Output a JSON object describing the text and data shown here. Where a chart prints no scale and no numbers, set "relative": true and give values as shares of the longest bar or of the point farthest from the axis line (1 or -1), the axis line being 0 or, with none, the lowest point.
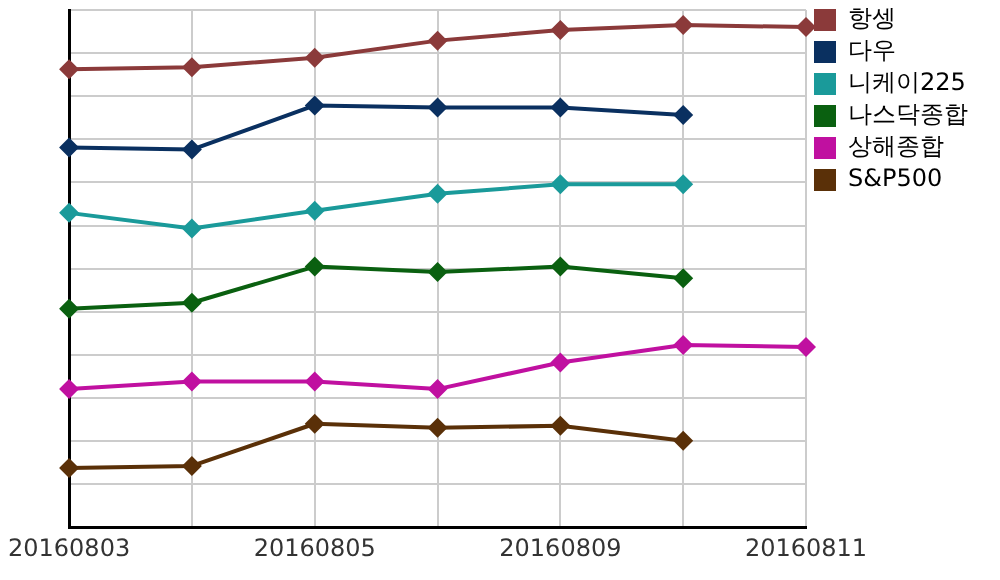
{
  "chart_data": {
    "type": "line",
    "relative": true,
    "grid": true,
    "legend": "top right",
    "marker": "diamond",
    "line_style": "solid",
    "categories": [
      "20160803",
      null,
      "20160805",
      null,
      "20160809",
      null,
      "20160811"
    ],
    "series": [
      {
        "name": "항셍",
        "color": "#8b3a3a",
        "values": [
          0.912,
          0.916,
          0.935,
          0.969,
          0.99,
          1,
          0.996
        ]
      },
      {
        "name": "다우",
        "color": "#0a3060",
        "values": [
          0.756,
          0.752,
          0.84,
          0.836,
          0.836,
          0.821,
          null
        ]
      },
      {
        "name": "니케이225",
        "color": "#1a9a9a",
        "values": [
          0.626,
          0.595,
          0.63,
          0.664,
          0.683,
          0.683,
          null
        ]
      },
      {
        "name": "나스닥종합",
        "color": "#0a6010",
        "values": [
          0.435,
          0.447,
          0.519,
          0.508,
          0.519,
          0.496,
          null
        ]
      },
      {
        "name": "상해종합",
        "color": "#c010a0",
        "values": [
          0.275,
          0.29,
          0.29,
          0.275,
          0.328,
          0.363,
          0.359
        ]
      },
      {
        "name": "S&P500",
        "color": "#5a3008",
        "values": [
          0.118,
          0.122,
          0.206,
          0.198,
          0.202,
          0.172,
          null
        ]
      }
    ]
  }
}
